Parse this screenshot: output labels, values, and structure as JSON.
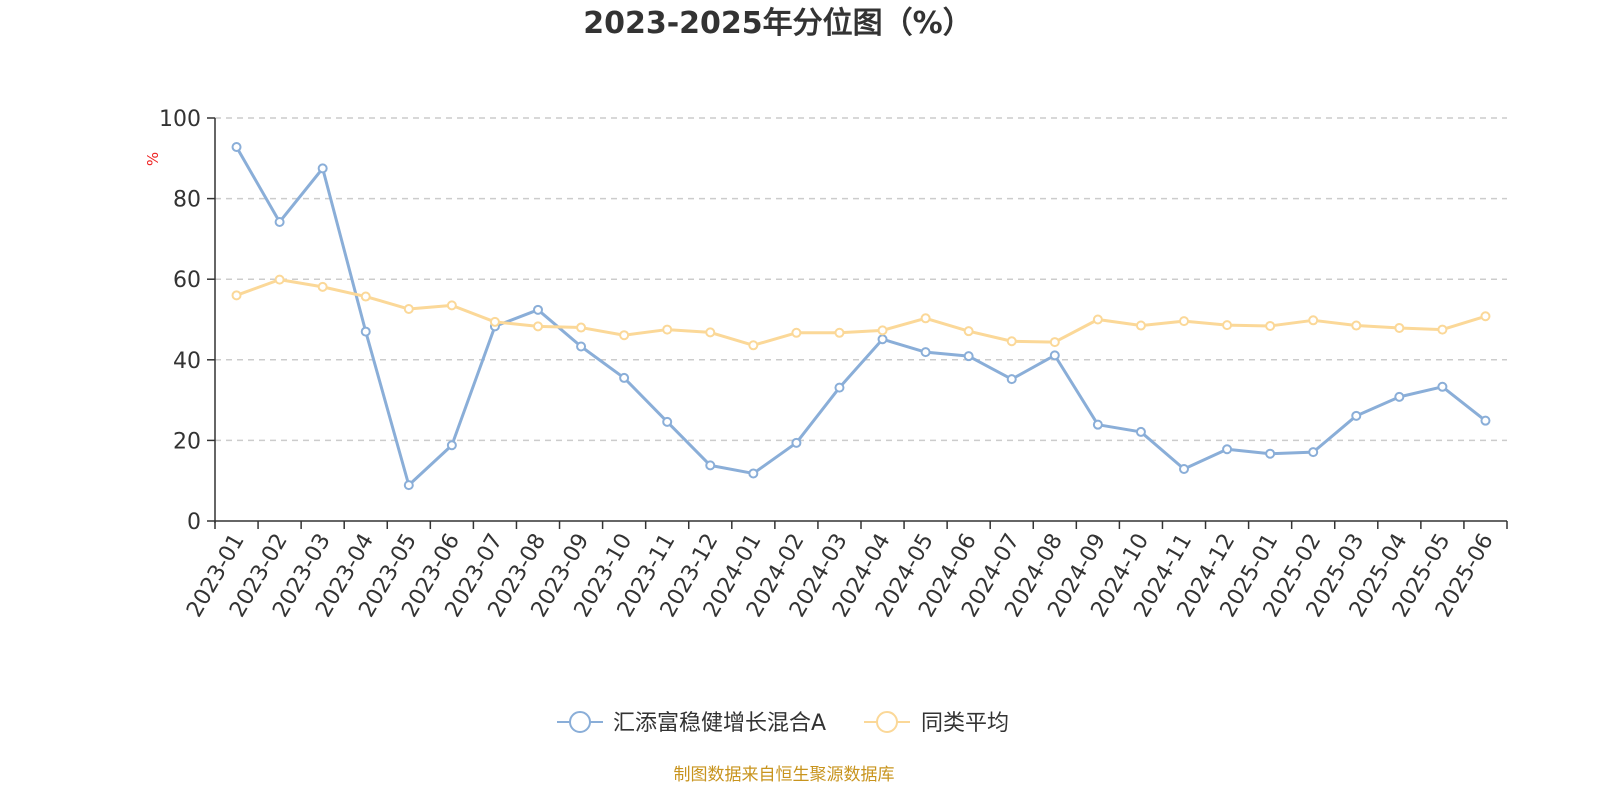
{
  "chart_data": {
    "type": "line",
    "title": "2023-2025年分位图（%）",
    "ylabel": "%",
    "xlabel": "",
    "ylim": [
      0,
      100
    ],
    "yticks": [
      0,
      20,
      40,
      60,
      80,
      100
    ],
    "grid": true,
    "legend_position": "bottom-center",
    "categories": [
      "2023-01",
      "2023-02",
      "2023-03",
      "2023-04",
      "2023-05",
      "2023-06",
      "2023-07",
      "2023-08",
      "2023-09",
      "2023-10",
      "2023-11",
      "2023-12",
      "2024-01",
      "2024-02",
      "2024-03",
      "2024-04",
      "2024-05",
      "2024-06",
      "2024-07",
      "2024-08",
      "2024-09",
      "2024-10",
      "2024-11",
      "2024-12",
      "2025-01",
      "2025-02",
      "2025-03",
      "2025-04",
      "2025-05",
      "2025-06"
    ],
    "series": [
      {
        "name": "汇添富稳健增长混合A",
        "color": "#8aaed8",
        "values": [
          92.8,
          74.2,
          87.5,
          47.0,
          8.9,
          18.8,
          48.3,
          52.4,
          43.3,
          35.5,
          24.6,
          13.8,
          11.8,
          19.4,
          33.1,
          45.1,
          41.9,
          40.9,
          35.2,
          41.1,
          23.9,
          22.1,
          12.9,
          17.8,
          16.7,
          17.1,
          26.1,
          30.8,
          33.3,
          24.9
        ]
      },
      {
        "name": "同类平均",
        "color": "#fbd898",
        "values": [
          56.0,
          59.9,
          58.1,
          55.7,
          52.6,
          53.5,
          49.4,
          48.3,
          48.0,
          46.1,
          47.5,
          46.8,
          43.6,
          46.7,
          46.7,
          47.3,
          50.3,
          47.1,
          44.6,
          44.4,
          50.0,
          48.5,
          49.6,
          48.6,
          48.4,
          49.8,
          48.5,
          47.9,
          47.5,
          50.8
        ]
      }
    ],
    "source_note": "制图数据来自恒生聚源数据库",
    "source_color": "#c8941e",
    "ylabel_color": "#ee2222"
  }
}
